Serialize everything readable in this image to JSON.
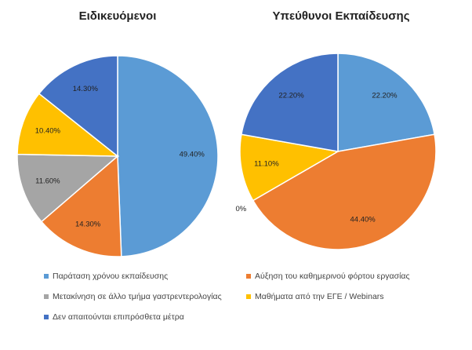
{
  "colors": {
    "blue_light": "#5b9bd5",
    "orange": "#ed7d31",
    "gray": "#a5a5a5",
    "yellow": "#ffc000",
    "blue_dark": "#4472c4"
  },
  "legend": [
    {
      "label": "Παράταση χρόνου εκπαίδευσης",
      "color": "#5b9bd5"
    },
    {
      "label": "Αύξηση του καθημερινού φόρτου εργασίας",
      "color": "#ed7d31"
    },
    {
      "label": "Μετακίνηση σε άλλο τμήμα γαστρεντερολογίας",
      "color": "#a5a5a5"
    },
    {
      "label": "Μαθήματα από την ΕΓΕ / Webinars",
      "color": "#ffc000"
    },
    {
      "label": "Δεν απαιτούνται επιπρόσθετα μέτρα",
      "color": "#4472c4"
    }
  ],
  "chart_data": [
    {
      "type": "pie",
      "title": "Ειδικευόμενοι",
      "slices": [
        {
          "category": "Παράταση χρόνου εκπαίδευσης",
          "value": 49.4,
          "label": "49.40%",
          "color": "#5b9bd5"
        },
        {
          "category": "Αύξηση του καθημερινού φόρτου εργασίας",
          "value": 14.3,
          "label": "14.30%",
          "color": "#ed7d31"
        },
        {
          "category": "Μετακίνηση σε άλλο τμήμα γαστρεντερολογίας",
          "value": 11.6,
          "label": "11.60%",
          "color": "#a5a5a5"
        },
        {
          "category": "Μαθήματα από την ΕΓΕ / Webinars",
          "value": 10.4,
          "label": "10.40%",
          "color": "#ffc000"
        },
        {
          "category": "Δεν απαιτούνται επιπρόσθετα μέτρα",
          "value": 14.3,
          "label": "14.30%",
          "color": "#4472c4"
        }
      ]
    },
    {
      "type": "pie",
      "title": "Υπεύθυνοι Εκπαίδευσης",
      "slices": [
        {
          "category": "Παράταση χρόνου εκπαίδευσης",
          "value": 22.2,
          "label": "22.20%",
          "color": "#5b9bd5"
        },
        {
          "category": "Αύξηση του καθημερινού φόρτου εργασίας",
          "value": 44.4,
          "label": "44.40%",
          "color": "#ed7d31"
        },
        {
          "category": "Μετακίνηση σε άλλο τμήμα γαστρεντερολογίας",
          "value": 0,
          "label": "0%",
          "color": "#a5a5a5"
        },
        {
          "category": "Μαθήματα από την ΕΓΕ / Webinars",
          "value": 11.1,
          "label": "11.10%",
          "color": "#ffc000"
        },
        {
          "category": "Δεν απαιτούνται επιπρόσθετα μέτρα",
          "value": 22.2,
          "label": "22.20%",
          "color": "#4472c4"
        }
      ]
    }
  ]
}
